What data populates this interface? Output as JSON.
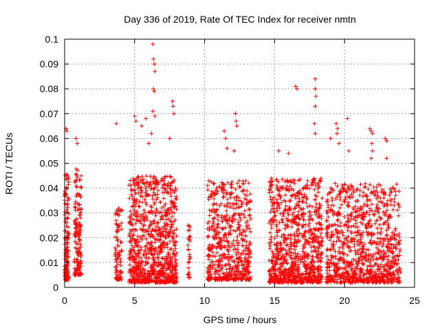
{
  "chart_data": {
    "type": "scatter",
    "title": "Day 336 of 2019, Rate Of TEC Index for receiver nmtn",
    "xlabel": "GPS time / hours",
    "ylabel": "ROTI / TECUs",
    "xlim": [
      0,
      24
    ],
    "ylim": [
      0,
      0.1
    ],
    "grid": true,
    "marker": "+",
    "marker_color": "#ff0000",
    "x_ticks": [
      "0",
      "5",
      "10",
      "15",
      "20",
      "25"
    ],
    "x_tick_values": [
      0,
      5,
      10,
      15,
      20,
      25
    ],
    "y_ticks": [
      "0",
      "0.01",
      "0.02",
      "0.03",
      "0.04",
      "0.05",
      "0.06",
      "0.07",
      "0.08",
      "0.09",
      "0.1"
    ],
    "y_tick_values": [
      0,
      0.01,
      0.02,
      0.03,
      0.04,
      0.05,
      0.06,
      0.07,
      0.08,
      0.09,
      0.1
    ],
    "clusters": [
      {
        "x_range": [
          0.0,
          0.3
        ],
        "y_base": 0.003,
        "y_max": 0.047,
        "density": 140
      },
      {
        "x_range": [
          0.7,
          1.2
        ],
        "y_base": 0.005,
        "y_max": 0.048,
        "density": 160
      },
      {
        "x_range": [
          3.6,
          4.1
        ],
        "y_base": 0.003,
        "y_max": 0.034,
        "density": 90
      },
      {
        "x_range": [
          4.6,
          8.0
        ],
        "y_base": 0.002,
        "y_max": 0.045,
        "density": 900
      },
      {
        "x_range": [
          8.8,
          9.0
        ],
        "y_base": 0.004,
        "y_max": 0.026,
        "density": 30
      },
      {
        "x_range": [
          10.2,
          13.3
        ],
        "y_base": 0.003,
        "y_max": 0.043,
        "density": 600
      },
      {
        "x_range": [
          14.6,
          18.4
        ],
        "y_base": 0.002,
        "y_max": 0.044,
        "density": 900
      },
      {
        "x_range": [
          18.7,
          24.0
        ],
        "y_base": 0.002,
        "y_max": 0.042,
        "density": 1000
      }
    ],
    "highlights": [
      {
        "x": 0.1,
        "y": 0.064
      },
      {
        "x": 0.15,
        "y": 0.063
      },
      {
        "x": 0.8,
        "y": 0.06
      },
      {
        "x": 0.9,
        "y": 0.058
      },
      {
        "x": 3.7,
        "y": 0.066
      },
      {
        "x": 5.0,
        "y": 0.069
      },
      {
        "x": 5.1,
        "y": 0.067
      },
      {
        "x": 5.5,
        "y": 0.065
      },
      {
        "x": 5.8,
        "y": 0.068
      },
      {
        "x": 6.3,
        "y": 0.098
      },
      {
        "x": 6.35,
        "y": 0.092
      },
      {
        "x": 6.4,
        "y": 0.09
      },
      {
        "x": 6.45,
        "y": 0.087
      },
      {
        "x": 6.35,
        "y": 0.08
      },
      {
        "x": 6.4,
        "y": 0.079
      },
      {
        "x": 6.3,
        "y": 0.071
      },
      {
        "x": 6.45,
        "y": 0.069
      },
      {
        "x": 6.2,
        "y": 0.062
      },
      {
        "x": 6.0,
        "y": 0.058
      },
      {
        "x": 7.7,
        "y": 0.075
      },
      {
        "x": 7.75,
        "y": 0.073
      },
      {
        "x": 7.8,
        "y": 0.07
      },
      {
        "x": 7.5,
        "y": 0.06
      },
      {
        "x": 11.4,
        "y": 0.063
      },
      {
        "x": 11.5,
        "y": 0.06
      },
      {
        "x": 11.6,
        "y": 0.056
      },
      {
        "x": 12.2,
        "y": 0.07
      },
      {
        "x": 12.25,
        "y": 0.067
      },
      {
        "x": 12.3,
        "y": 0.065
      },
      {
        "x": 12.1,
        "y": 0.055
      },
      {
        "x": 16.5,
        "y": 0.081
      },
      {
        "x": 16.6,
        "y": 0.08
      },
      {
        "x": 15.3,
        "y": 0.055
      },
      {
        "x": 16.0,
        "y": 0.054
      },
      {
        "x": 17.9,
        "y": 0.084
      },
      {
        "x": 17.9,
        "y": 0.08
      },
      {
        "x": 17.95,
        "y": 0.077
      },
      {
        "x": 17.9,
        "y": 0.073
      },
      {
        "x": 17.85,
        "y": 0.066
      },
      {
        "x": 17.9,
        "y": 0.062
      },
      {
        "x": 19.4,
        "y": 0.066
      },
      {
        "x": 19.5,
        "y": 0.064
      },
      {
        "x": 19.45,
        "y": 0.062
      },
      {
        "x": 19.0,
        "y": 0.06
      },
      {
        "x": 19.6,
        "y": 0.058
      },
      {
        "x": 20.2,
        "y": 0.068
      },
      {
        "x": 20.3,
        "y": 0.055
      },
      {
        "x": 21.8,
        "y": 0.064
      },
      {
        "x": 21.9,
        "y": 0.063
      },
      {
        "x": 22.0,
        "y": 0.062
      },
      {
        "x": 21.95,
        "y": 0.058
      },
      {
        "x": 22.0,
        "y": 0.055
      },
      {
        "x": 21.9,
        "y": 0.052
      },
      {
        "x": 22.9,
        "y": 0.06
      },
      {
        "x": 23.0,
        "y": 0.059
      },
      {
        "x": 23.0,
        "y": 0.052
      }
    ]
  }
}
